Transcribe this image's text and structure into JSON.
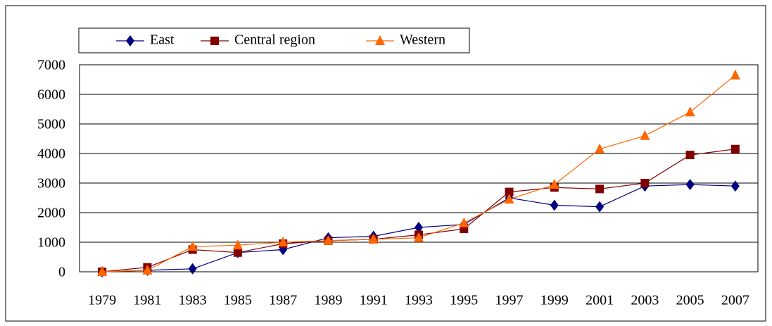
{
  "chart_data": {
    "type": "line",
    "categories": [
      "1979",
      "1981",
      "1983",
      "1985",
      "1987",
      "1989",
      "1991",
      "1993",
      "1995",
      "1997",
      "1999",
      "2001",
      "2003",
      "2005",
      "2007"
    ],
    "series": [
      {
        "name": "East",
        "color": "#000080",
        "marker": "diamond",
        "values": [
          0,
          50,
          100,
          650,
          750,
          1150,
          1200,
          1500,
          1600,
          2500,
          2250,
          2200,
          2900,
          2950,
          2900
        ]
      },
      {
        "name": "Central region",
        "color": "#800000",
        "marker": "square",
        "values": [
          0,
          150,
          750,
          650,
          950,
          1050,
          1100,
          1250,
          1450,
          2700,
          2850,
          2800,
          3000,
          3950,
          4150
        ]
      },
      {
        "name": "Western",
        "color": "#FF6600",
        "marker": "triangle",
        "values": [
          0,
          50,
          850,
          900,
          1000,
          1050,
          1100,
          1150,
          1650,
          2450,
          2950,
          4150,
          4600,
          5400,
          6650
        ]
      }
    ],
    "ylim": [
      0,
      7000
    ],
    "yticks": [
      0,
      1000,
      2000,
      3000,
      4000,
      5000,
      6000,
      7000
    ],
    "grid": true,
    "legend": "top-left"
  }
}
